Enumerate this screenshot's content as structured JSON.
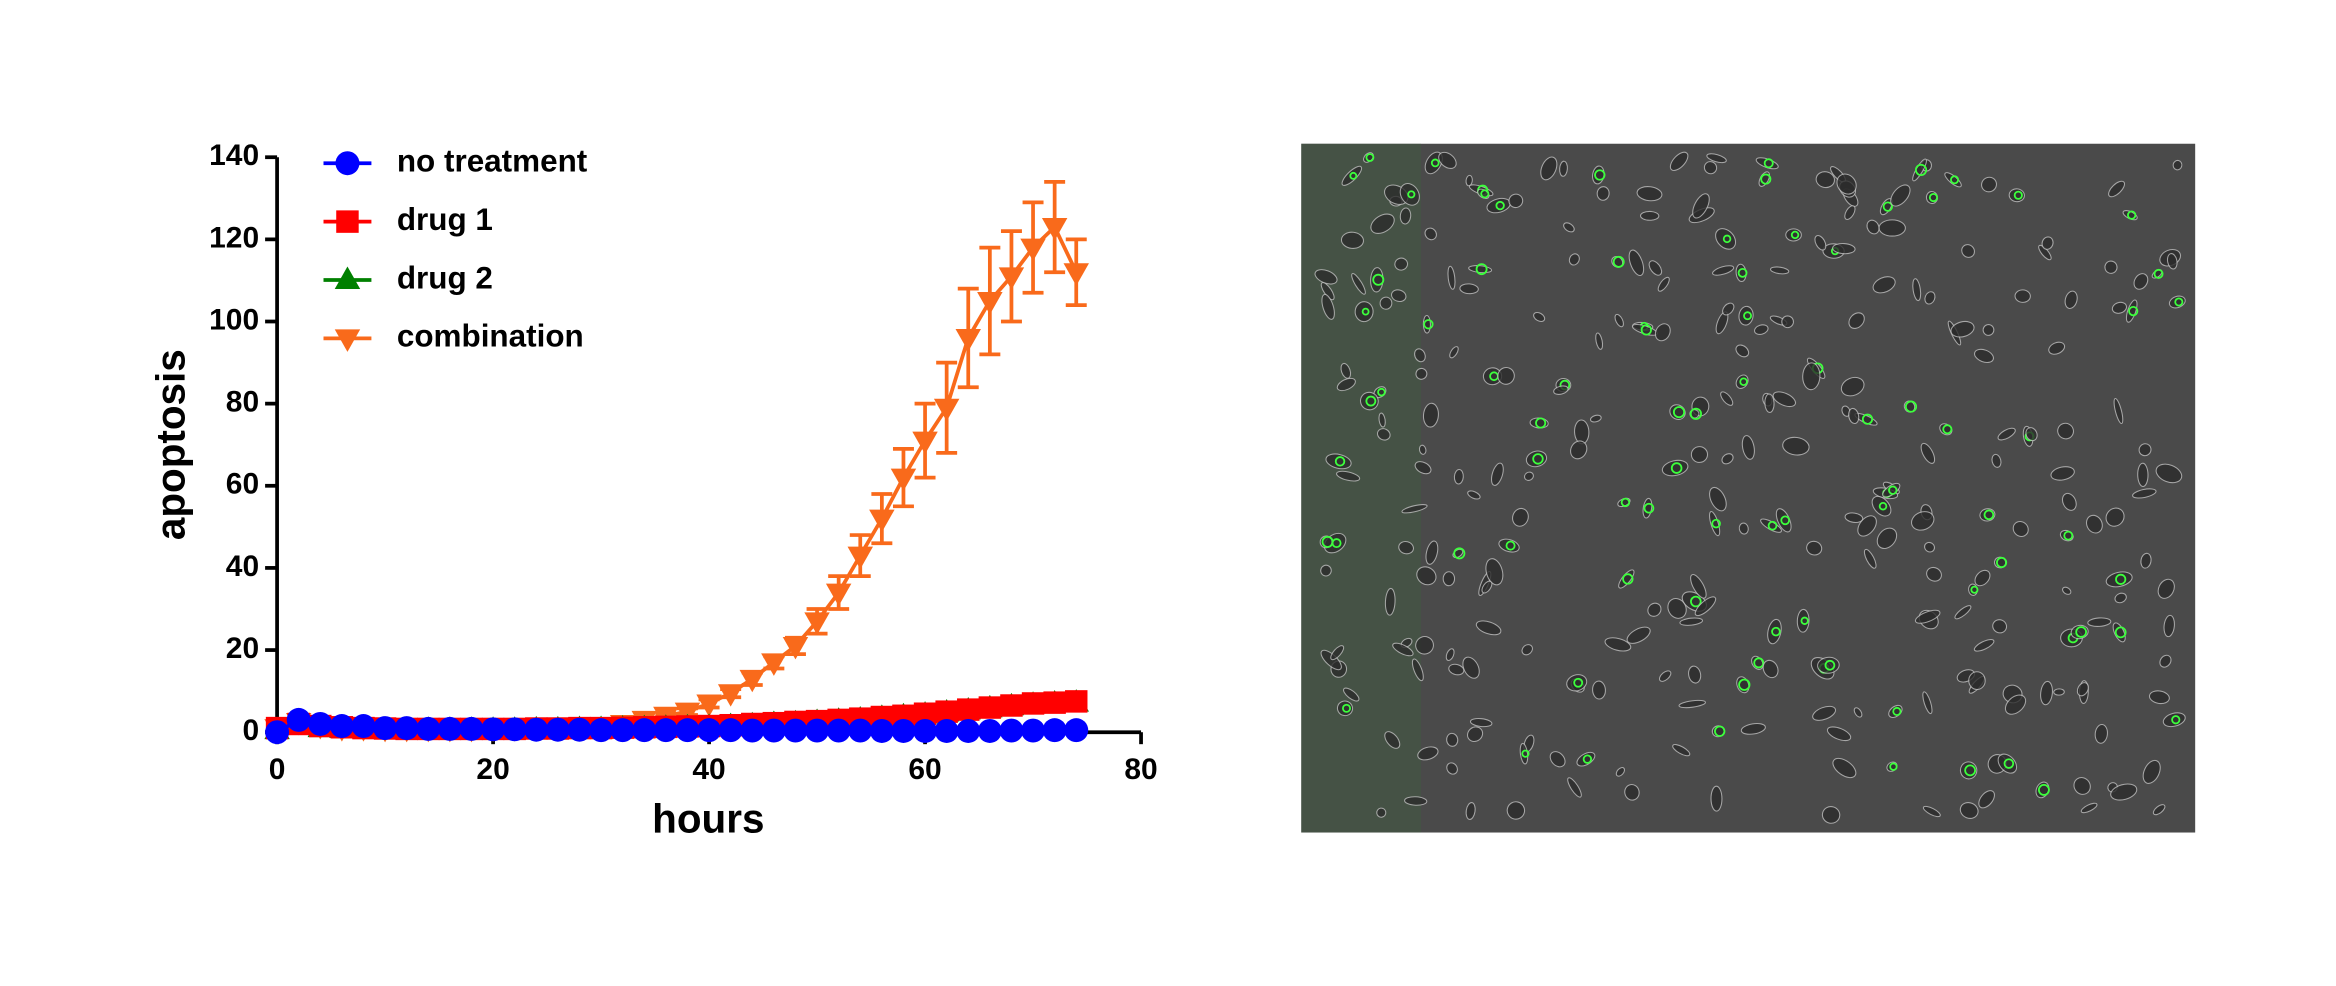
{
  "chart_data": {
    "type": "line",
    "x_label": "hours",
    "y_label": "apoptosis",
    "x": [
      0,
      2,
      4,
      6,
      8,
      10,
      12,
      14,
      16,
      18,
      20,
      22,
      24,
      26,
      28,
      30,
      32,
      34,
      36,
      38,
      40,
      42,
      44,
      46,
      48,
      50,
      52,
      54,
      56,
      58,
      60,
      62,
      64,
      66,
      68,
      70,
      72,
      74
    ],
    "series": [
      {
        "name": "no treatment",
        "color": "#0000ff",
        "marker": "circle",
        "values": [
          0,
          3,
          2,
          1.5,
          1.5,
          1,
          1,
          0.8,
          0.8,
          0.8,
          0.7,
          0.7,
          0.6,
          0.6,
          0.6,
          0.5,
          0.5,
          0.5,
          0.5,
          0.5,
          0.5,
          0.5,
          0.4,
          0.4,
          0.4,
          0.4,
          0.4,
          0.4,
          0.3,
          0.3,
          0.3,
          0.3,
          0.3,
          0.3,
          0.4,
          0.4,
          0.5,
          0.5
        ]
      },
      {
        "name": "drug 1",
        "color": "#ff0000",
        "marker": "square",
        "values": [
          1,
          2,
          1.5,
          1.2,
          1,
          0.9,
          0.8,
          0.8,
          0.8,
          0.8,
          0.8,
          0.8,
          0.9,
          0.9,
          1,
          1,
          1.1,
          1.2,
          1.3,
          1.4,
          1.5,
          1.7,
          2,
          2.2,
          2.5,
          2.7,
          3,
          3.3,
          3.7,
          4,
          4.5,
          5,
          5.5,
          6,
          6.5,
          7,
          7.2,
          7.5
        ]
      },
      {
        "name": "drug 2",
        "color": "#008000",
        "marker": "triangle-up",
        "values": [
          0.5,
          1.5,
          1,
          0.8,
          0.7,
          0.6,
          0.6,
          0.6,
          0.6,
          0.6,
          0.6,
          0.6,
          0.7,
          0.7,
          0.8,
          0.8,
          0.9,
          1,
          1.1,
          1.2,
          1.3,
          1.5,
          1.7,
          2,
          2.2,
          2.5,
          2.8,
          3.1,
          3.5,
          3.9,
          4.3,
          4.8,
          5.3,
          5.8,
          6.3,
          6.7,
          7,
          7.2
        ]
      },
      {
        "name": "combination",
        "color": "#f96a1b",
        "marker": "triangle-down",
        "values": [
          1,
          2.5,
          1.5,
          1,
          1,
          0.8,
          0.8,
          0.8,
          0.8,
          0.8,
          0.9,
          1,
          1,
          1.2,
          1.3,
          1.5,
          2,
          3,
          4,
          5,
          7,
          9.5,
          13,
          17,
          21,
          27,
          34,
          43,
          52,
          62,
          71,
          79,
          96,
          105,
          111,
          118,
          123,
          112
        ],
        "errors": [
          0.5,
          0.5,
          0.5,
          0.5,
          0.5,
          0.5,
          0.5,
          0.5,
          0.5,
          0.5,
          0.5,
          0.5,
          0.5,
          0.5,
          0.5,
          0.5,
          0.5,
          0.5,
          0.5,
          0.8,
          1,
          1,
          1.5,
          1.5,
          2,
          3,
          4,
          5,
          6,
          7,
          9,
          11,
          12,
          13,
          11,
          11,
          11,
          8
        ]
      }
    ],
    "xlim": [
      0,
      80
    ],
    "xticks": [
      0,
      20,
      40,
      60,
      80
    ],
    "ylim": [
      0,
      140
    ],
    "yticks": [
      0,
      20,
      40,
      60,
      80,
      100,
      120,
      140
    ],
    "legend": "top-left"
  }
}
